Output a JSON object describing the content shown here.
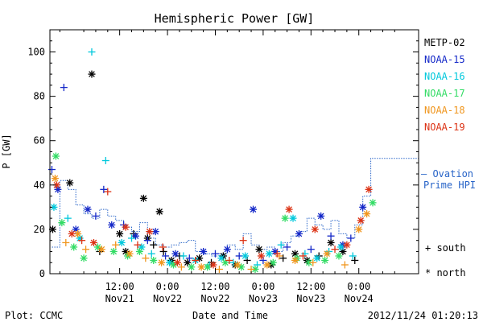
{
  "chart_data": {
    "type": "scatter",
    "title": "Hemispheric Power [GW]",
    "ylabel": "P [GW]",
    "xlabel": "Date and Time",
    "ylim": [
      0,
      110
    ],
    "xlim": [
      -17.5,
      75
    ],
    "y_ticks": [
      0,
      20,
      40,
      60,
      80,
      100
    ],
    "x_ticks": [
      {
        "x": 0,
        "top": "12:00",
        "bottom": "Nov21"
      },
      {
        "x": 12,
        "top": "0:00",
        "bottom": "Nov22"
      },
      {
        "x": 24,
        "top": "12:00",
        "bottom": "Nov22"
      },
      {
        "x": 36,
        "top": "0:00",
        "bottom": "Nov23"
      },
      {
        "x": 48,
        "top": "12:00",
        "bottom": "Nov23"
      },
      {
        "x": 60,
        "top": "0:00",
        "bottom": "Nov24"
      }
    ],
    "footer_left": "Plot: CCMC",
    "footer_right": "2012/11/24 01:20:13",
    "series": [
      {
        "name": "METP-02",
        "color": "#000000",
        "points": [
          {
            "x": -16.8,
            "y": 20,
            "m": "x"
          },
          {
            "x": -12.5,
            "y": 41,
            "m": "x"
          },
          {
            "x": -7,
            "y": 90,
            "m": "x"
          },
          {
            "x": -5,
            "y": 10,
            "m": "+"
          },
          {
            "x": 0,
            "y": 18,
            "m": "x"
          },
          {
            "x": 1.5,
            "y": 10,
            "m": "x"
          },
          {
            "x": 3.5,
            "y": 18,
            "m": "+"
          },
          {
            "x": 6,
            "y": 34,
            "m": "x"
          },
          {
            "x": 7,
            "y": 16,
            "m": "x"
          },
          {
            "x": 8.5,
            "y": 13,
            "m": "+"
          },
          {
            "x": 10,
            "y": 28,
            "m": "x"
          },
          {
            "x": 11,
            "y": 10,
            "m": "+"
          },
          {
            "x": 13,
            "y": 6,
            "m": "x"
          },
          {
            "x": 15,
            "y": 8,
            "m": "+"
          },
          {
            "x": 17,
            "y": 5,
            "m": "x"
          },
          {
            "x": 20,
            "y": 7,
            "m": "x"
          },
          {
            "x": 23,
            "y": 5,
            "m": "+"
          },
          {
            "x": 26,
            "y": 8,
            "m": "x"
          },
          {
            "x": 29,
            "y": 4,
            "m": "x"
          },
          {
            "x": 32,
            "y": 6,
            "m": "+"
          },
          {
            "x": 35,
            "y": 11,
            "m": "x"
          },
          {
            "x": 38,
            "y": 4,
            "m": "x"
          },
          {
            "x": 41,
            "y": 7,
            "m": "+"
          },
          {
            "x": 44,
            "y": 9,
            "m": "x"
          },
          {
            "x": 47,
            "y": 6,
            "m": "x"
          },
          {
            "x": 50,
            "y": 8,
            "m": "+"
          },
          {
            "x": 53,
            "y": 14,
            "m": "x"
          },
          {
            "x": 56,
            "y": 10,
            "m": "x"
          },
          {
            "x": 59,
            "y": 6,
            "m": "+"
          }
        ]
      },
      {
        "name": "NOAA-15",
        "color": "#1428c8",
        "points": [
          {
            "x": -17,
            "y": 47,
            "m": "+"
          },
          {
            "x": -15.5,
            "y": 38,
            "m": "x"
          },
          {
            "x": -14,
            "y": 84,
            "m": "+"
          },
          {
            "x": -11,
            "y": 20,
            "m": "x"
          },
          {
            "x": -8,
            "y": 29,
            "m": "x"
          },
          {
            "x": -6,
            "y": 26,
            "m": "+"
          },
          {
            "x": -4,
            "y": 38,
            "m": "+"
          },
          {
            "x": -2,
            "y": 22,
            "m": "x"
          },
          {
            "x": 1,
            "y": 22,
            "m": "+"
          },
          {
            "x": 4,
            "y": 17,
            "m": "x"
          },
          {
            "x": 7,
            "y": 15,
            "m": "+"
          },
          {
            "x": 9,
            "y": 19,
            "m": "x"
          },
          {
            "x": 11.5,
            "y": 8,
            "m": "+"
          },
          {
            "x": 14,
            "y": 9,
            "m": "x"
          },
          {
            "x": 17.5,
            "y": 7,
            "m": "+"
          },
          {
            "x": 21,
            "y": 10,
            "m": "x"
          },
          {
            "x": 24,
            "y": 9,
            "m": "+"
          },
          {
            "x": 27,
            "y": 11,
            "m": "x"
          },
          {
            "x": 30,
            "y": 8,
            "m": "+"
          },
          {
            "x": 33.5,
            "y": 29,
            "m": "x"
          },
          {
            "x": 36,
            "y": 6,
            "m": "+"
          },
          {
            "x": 39,
            "y": 10,
            "m": "x"
          },
          {
            "x": 42,
            "y": 12,
            "m": "+"
          },
          {
            "x": 45,
            "y": 18,
            "m": "x"
          },
          {
            "x": 48,
            "y": 11,
            "m": "+"
          },
          {
            "x": 50.5,
            "y": 26,
            "m": "x"
          },
          {
            "x": 53,
            "y": 17,
            "m": "+"
          },
          {
            "x": 56,
            "y": 13,
            "m": "x"
          },
          {
            "x": 58,
            "y": 16,
            "m": "+"
          },
          {
            "x": 61,
            "y": 30,
            "m": "x"
          }
        ]
      },
      {
        "name": "NOAA-16",
        "color": "#00c8dc",
        "points": [
          {
            "x": -16.5,
            "y": 30,
            "m": "x"
          },
          {
            "x": -13,
            "y": 25,
            "m": "+"
          },
          {
            "x": -10,
            "y": 16,
            "m": "x"
          },
          {
            "x": -7,
            "y": 100,
            "m": "+"
          },
          {
            "x": -3.5,
            "y": 51,
            "m": "+"
          },
          {
            "x": 0.5,
            "y": 14,
            "m": "x"
          },
          {
            "x": 3,
            "y": 16,
            "m": "+"
          },
          {
            "x": 5.5,
            "y": 12,
            "m": "x"
          },
          {
            "x": 8,
            "y": 9,
            "m": "+"
          },
          {
            "x": 12.5,
            "y": 5,
            "m": "x"
          },
          {
            "x": 16,
            "y": 8,
            "m": "+"
          },
          {
            "x": 19,
            "y": 6,
            "m": "x"
          },
          {
            "x": 22.5,
            "y": 4,
            "m": "+"
          },
          {
            "x": 25.5,
            "y": 7,
            "m": "x"
          },
          {
            "x": 28.5,
            "y": 5,
            "m": "+"
          },
          {
            "x": 31.5,
            "y": 8,
            "m": "x"
          },
          {
            "x": 34.5,
            "y": 4,
            "m": "+"
          },
          {
            "x": 37.5,
            "y": 9,
            "m": "x"
          },
          {
            "x": 40.5,
            "y": 13,
            "m": "+"
          },
          {
            "x": 43.5,
            "y": 25,
            "m": "x"
          },
          {
            "x": 46.5,
            "y": 9,
            "m": "+"
          },
          {
            "x": 49.5,
            "y": 7,
            "m": "x"
          },
          {
            "x": 52.5,
            "y": 10,
            "m": "+"
          },
          {
            "x": 55.5,
            "y": 12,
            "m": "x"
          },
          {
            "x": 58.5,
            "y": 8,
            "m": "+"
          }
        ]
      },
      {
        "name": "NOAA-17",
        "color": "#32dc64",
        "points": [
          {
            "x": -16,
            "y": 53,
            "m": "x"
          },
          {
            "x": -14.5,
            "y": 23,
            "m": "x"
          },
          {
            "x": -11.5,
            "y": 12,
            "m": "x"
          },
          {
            "x": -9,
            "y": 7,
            "m": "x"
          },
          {
            "x": -5.5,
            "y": 12,
            "m": "x"
          },
          {
            "x": -1.5,
            "y": 10,
            "m": "x"
          },
          {
            "x": 2,
            "y": 8,
            "m": "x"
          },
          {
            "x": 5,
            "y": 10,
            "m": "x"
          },
          {
            "x": 8.5,
            "y": 6,
            "m": "x"
          },
          {
            "x": 13.5,
            "y": 4,
            "m": "x"
          },
          {
            "x": 18,
            "y": 3,
            "m": "x"
          },
          {
            "x": 22,
            "y": 3,
            "m": "x"
          },
          {
            "x": 26.5,
            "y": 5,
            "m": "x"
          },
          {
            "x": 30.5,
            "y": 3,
            "m": "x"
          },
          {
            "x": 34,
            "y": 2,
            "m": "x"
          },
          {
            "x": 38.5,
            "y": 5,
            "m": "x"
          },
          {
            "x": 41.5,
            "y": 25,
            "m": "x"
          },
          {
            "x": 44.5,
            "y": 7,
            "m": "x"
          },
          {
            "x": 47.5,
            "y": 5,
            "m": "x"
          },
          {
            "x": 51.5,
            "y": 6,
            "m": "x"
          },
          {
            "x": 55,
            "y": 8,
            "m": "x"
          },
          {
            "x": 63.5,
            "y": 32,
            "m": "x"
          }
        ]
      },
      {
        "name": "NOAA-18",
        "color": "#f0961e",
        "points": [
          {
            "x": -16.2,
            "y": 43,
            "m": "x"
          },
          {
            "x": -13.5,
            "y": 14,
            "m": "+"
          },
          {
            "x": -10.5,
            "y": 18,
            "m": "x"
          },
          {
            "x": -8.5,
            "y": 11,
            "m": "+"
          },
          {
            "x": -4.5,
            "y": 11,
            "m": "x"
          },
          {
            "x": -1,
            "y": 13,
            "m": "+"
          },
          {
            "x": 2.5,
            "y": 9,
            "m": "x"
          },
          {
            "x": 6.5,
            "y": 7,
            "m": "+"
          },
          {
            "x": 10.5,
            "y": 5,
            "m": "x"
          },
          {
            "x": 15.5,
            "y": 3,
            "m": "+"
          },
          {
            "x": 20.5,
            "y": 3,
            "m": "x"
          },
          {
            "x": 25,
            "y": 2,
            "m": "+"
          },
          {
            "x": 29.5,
            "y": 4,
            "m": "x"
          },
          {
            "x": 33,
            "y": 2,
            "m": "+"
          },
          {
            "x": 37,
            "y": 4,
            "m": "x"
          },
          {
            "x": 40,
            "y": 8,
            "m": "+"
          },
          {
            "x": 44,
            "y": 6,
            "m": "x"
          },
          {
            "x": 48.5,
            "y": 5,
            "m": "+"
          },
          {
            "x": 52,
            "y": 9,
            "m": "x"
          },
          {
            "x": 56.5,
            "y": 4,
            "m": "+"
          },
          {
            "x": 60,
            "y": 20,
            "m": "x"
          },
          {
            "x": 62,
            "y": 27,
            "m": "x"
          }
        ]
      },
      {
        "name": "NOAA-19",
        "color": "#dc3214",
        "points": [
          {
            "x": -15.8,
            "y": 40,
            "m": "x"
          },
          {
            "x": -12,
            "y": 18,
            "m": "x"
          },
          {
            "x": -9.5,
            "y": 15,
            "m": "+"
          },
          {
            "x": -6.5,
            "y": 14,
            "m": "x"
          },
          {
            "x": -3,
            "y": 37,
            "m": "+"
          },
          {
            "x": 1.5,
            "y": 21,
            "m": "x"
          },
          {
            "x": 4.5,
            "y": 13,
            "m": "+"
          },
          {
            "x": 7.5,
            "y": 19,
            "m": "x"
          },
          {
            "x": 10.8,
            "y": 12,
            "m": "+"
          },
          {
            "x": 14.5,
            "y": 5,
            "m": "x"
          },
          {
            "x": 19,
            "y": 6,
            "m": "+"
          },
          {
            "x": 23.5,
            "y": 4,
            "m": "x"
          },
          {
            "x": 27.5,
            "y": 6,
            "m": "+"
          },
          {
            "x": 31,
            "y": 15,
            "m": "+"
          },
          {
            "x": 35.5,
            "y": 8,
            "m": "x"
          },
          {
            "x": 39.5,
            "y": 9,
            "m": "+"
          },
          {
            "x": 42.5,
            "y": 29,
            "m": "x"
          },
          {
            "x": 46,
            "y": 8,
            "m": "+"
          },
          {
            "x": 49,
            "y": 20,
            "m": "x"
          },
          {
            "x": 54,
            "y": 11,
            "m": "+"
          },
          {
            "x": 57,
            "y": 13,
            "m": "x"
          },
          {
            "x": 60.5,
            "y": 24,
            "m": "x"
          },
          {
            "x": 62.5,
            "y": 38,
            "m": "x"
          }
        ]
      }
    ],
    "ovation": {
      "name_line1": "— Ovation",
      "name_line2": "Prime HPI",
      "color": "#2864c8",
      "x": [
        -17,
        -15,
        -13,
        -11,
        -9,
        -7,
        -5,
        -3,
        -1,
        1,
        3,
        5,
        7,
        9,
        11,
        13,
        15,
        17,
        19,
        21,
        23,
        25,
        27,
        29,
        31,
        33,
        35,
        37,
        39,
        41,
        43,
        45,
        47,
        49,
        51,
        53,
        55,
        57,
        59,
        61,
        63
      ],
      "y": [
        12,
        42,
        38,
        31,
        27,
        25,
        29,
        26,
        24,
        21,
        19,
        23,
        16,
        13,
        12,
        13,
        14,
        15,
        10,
        9,
        8,
        9,
        13,
        11,
        18,
        13,
        11,
        12,
        10,
        14,
        17,
        19,
        25,
        22,
        20,
        24,
        18,
        16,
        22,
        35,
        52
      ]
    },
    "marker_legend": {
      "plus": "+ south",
      "star": "* north"
    }
  }
}
